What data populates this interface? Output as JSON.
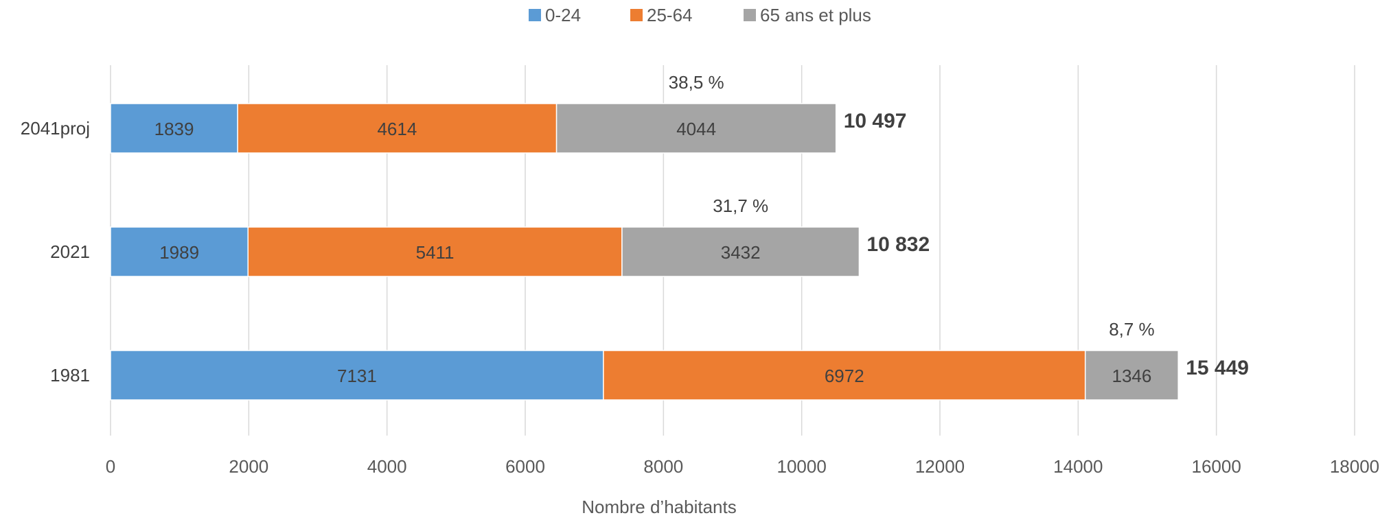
{
  "chart_data": {
    "type": "bar",
    "orientation": "horizontal",
    "stacked": true,
    "categories": [
      "2041proj",
      "2021",
      "1981"
    ],
    "series": [
      {
        "name": "0-24",
        "color": "#5B9BD5",
        "values": [
          1839,
          1989,
          7131
        ]
      },
      {
        "name": "25-64",
        "color": "#ED7D31",
        "values": [
          4614,
          5411,
          6972
        ]
      },
      {
        "name": "65 ans et plus",
        "color": "#A5A5A5",
        "values": [
          4044,
          3432,
          1346
        ]
      }
    ],
    "totals": [
      "10 497",
      "10 832",
      "15 449"
    ],
    "percent_annotations": [
      "38,5 %",
      "31,7 %",
      "8,7 %"
    ],
    "xlabel": "Nombre d’habitants",
    "ylabel": "",
    "xlim": [
      0,
      18000
    ],
    "xticks": [
      0,
      2000,
      4000,
      6000,
      8000,
      10000,
      12000,
      14000,
      16000,
      18000
    ],
    "grid": true,
    "legend_position": "top"
  }
}
